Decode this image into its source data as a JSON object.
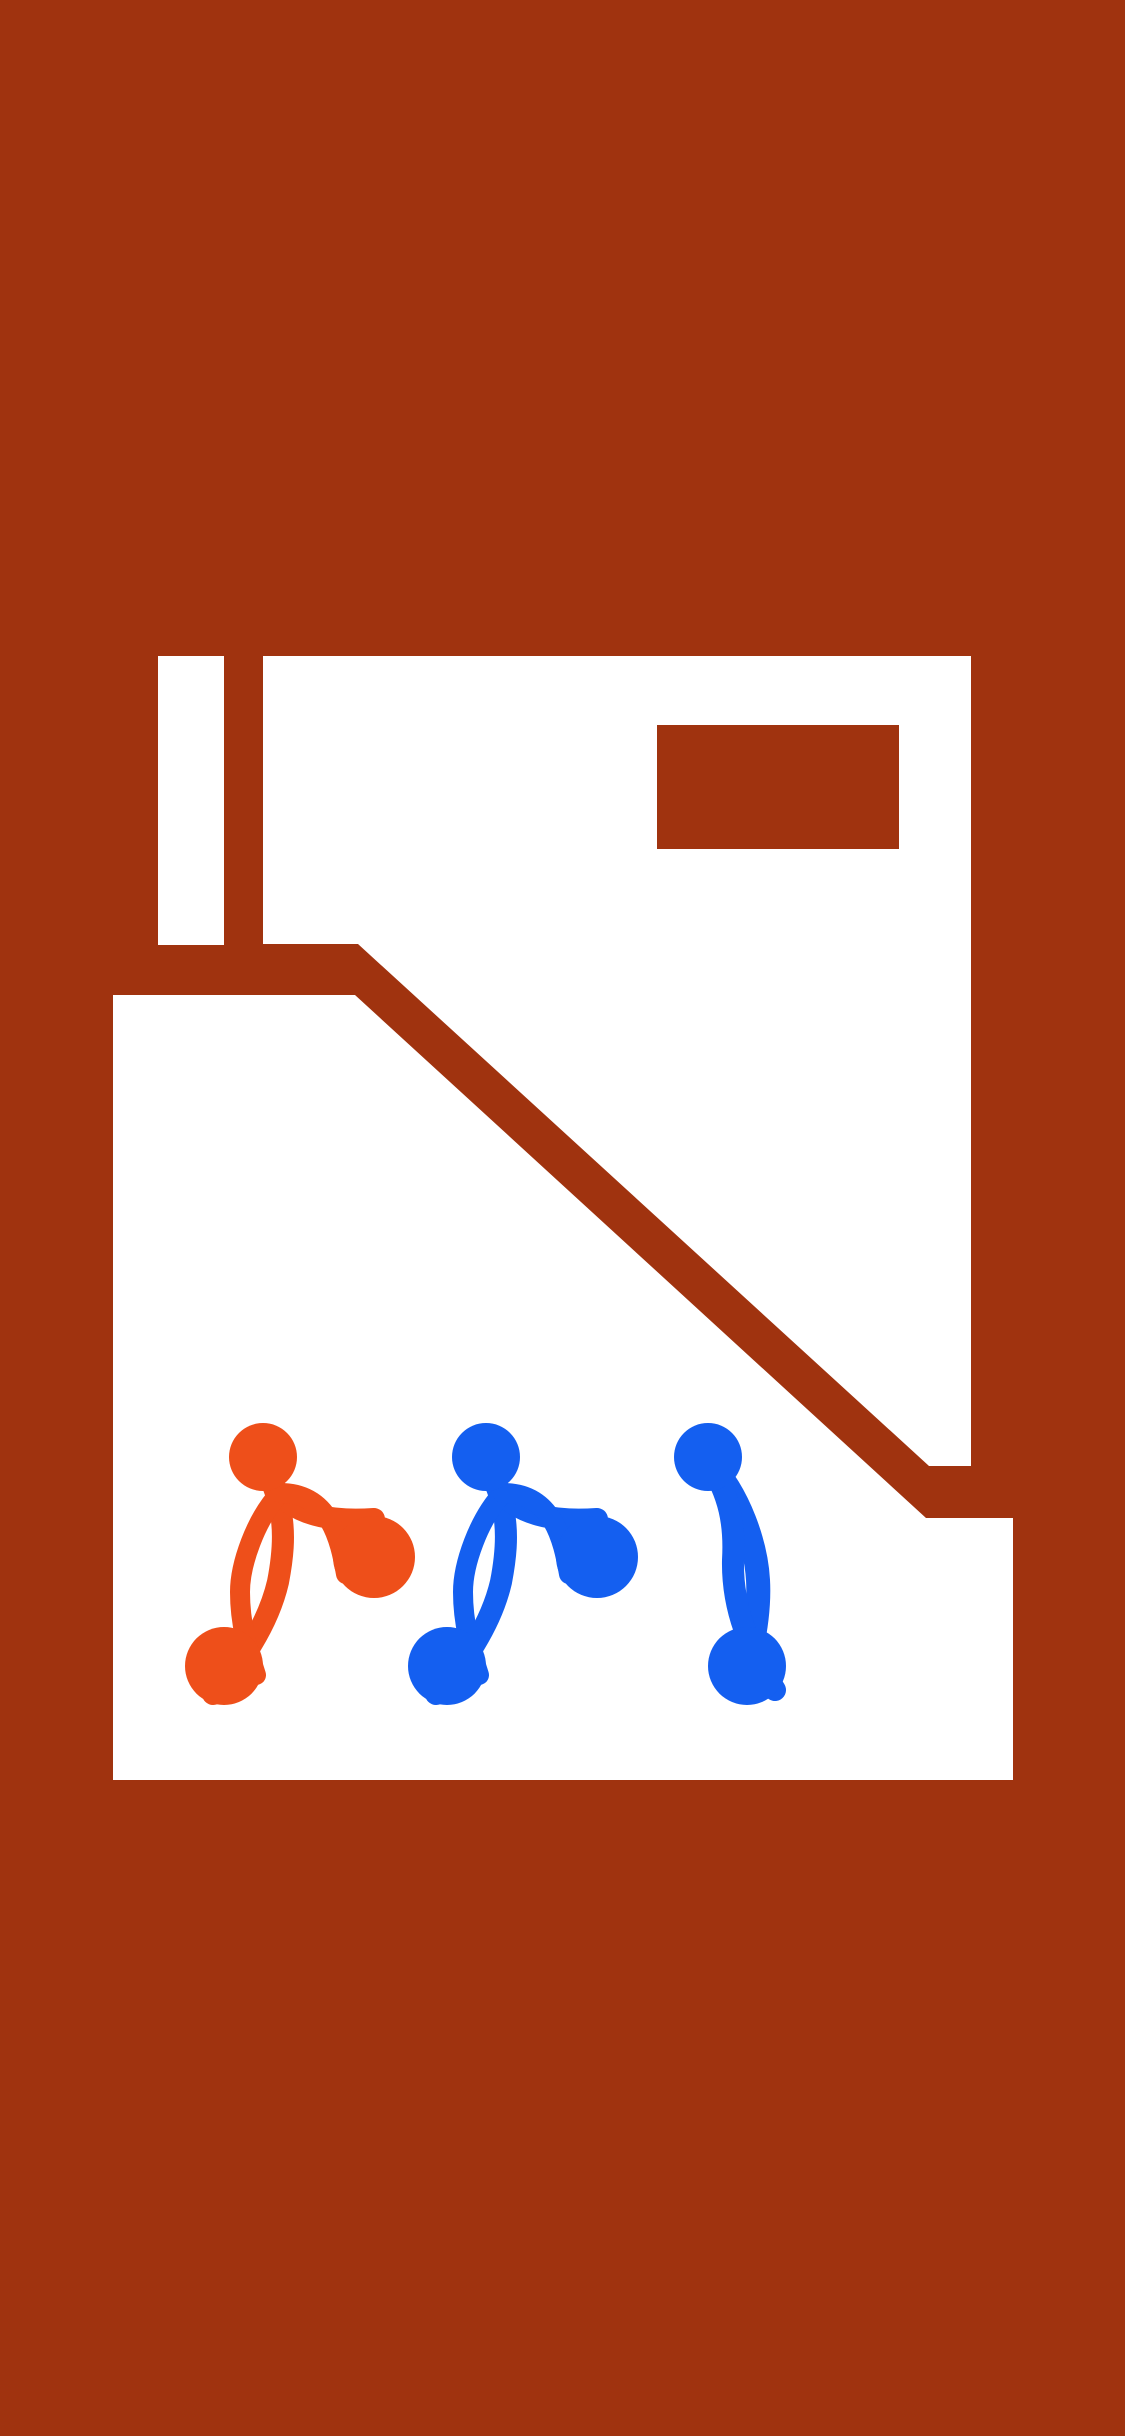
{
  "screen": {
    "background_color": "#A0330F"
  },
  "logo": {
    "icon": "app-logo-icon",
    "foreground_color": "#FFFFFF",
    "cutout_color": "#A0330F",
    "glyph_color_primary": "#EE4F1A",
    "glyph_color_secondary": "#145FF0"
  }
}
